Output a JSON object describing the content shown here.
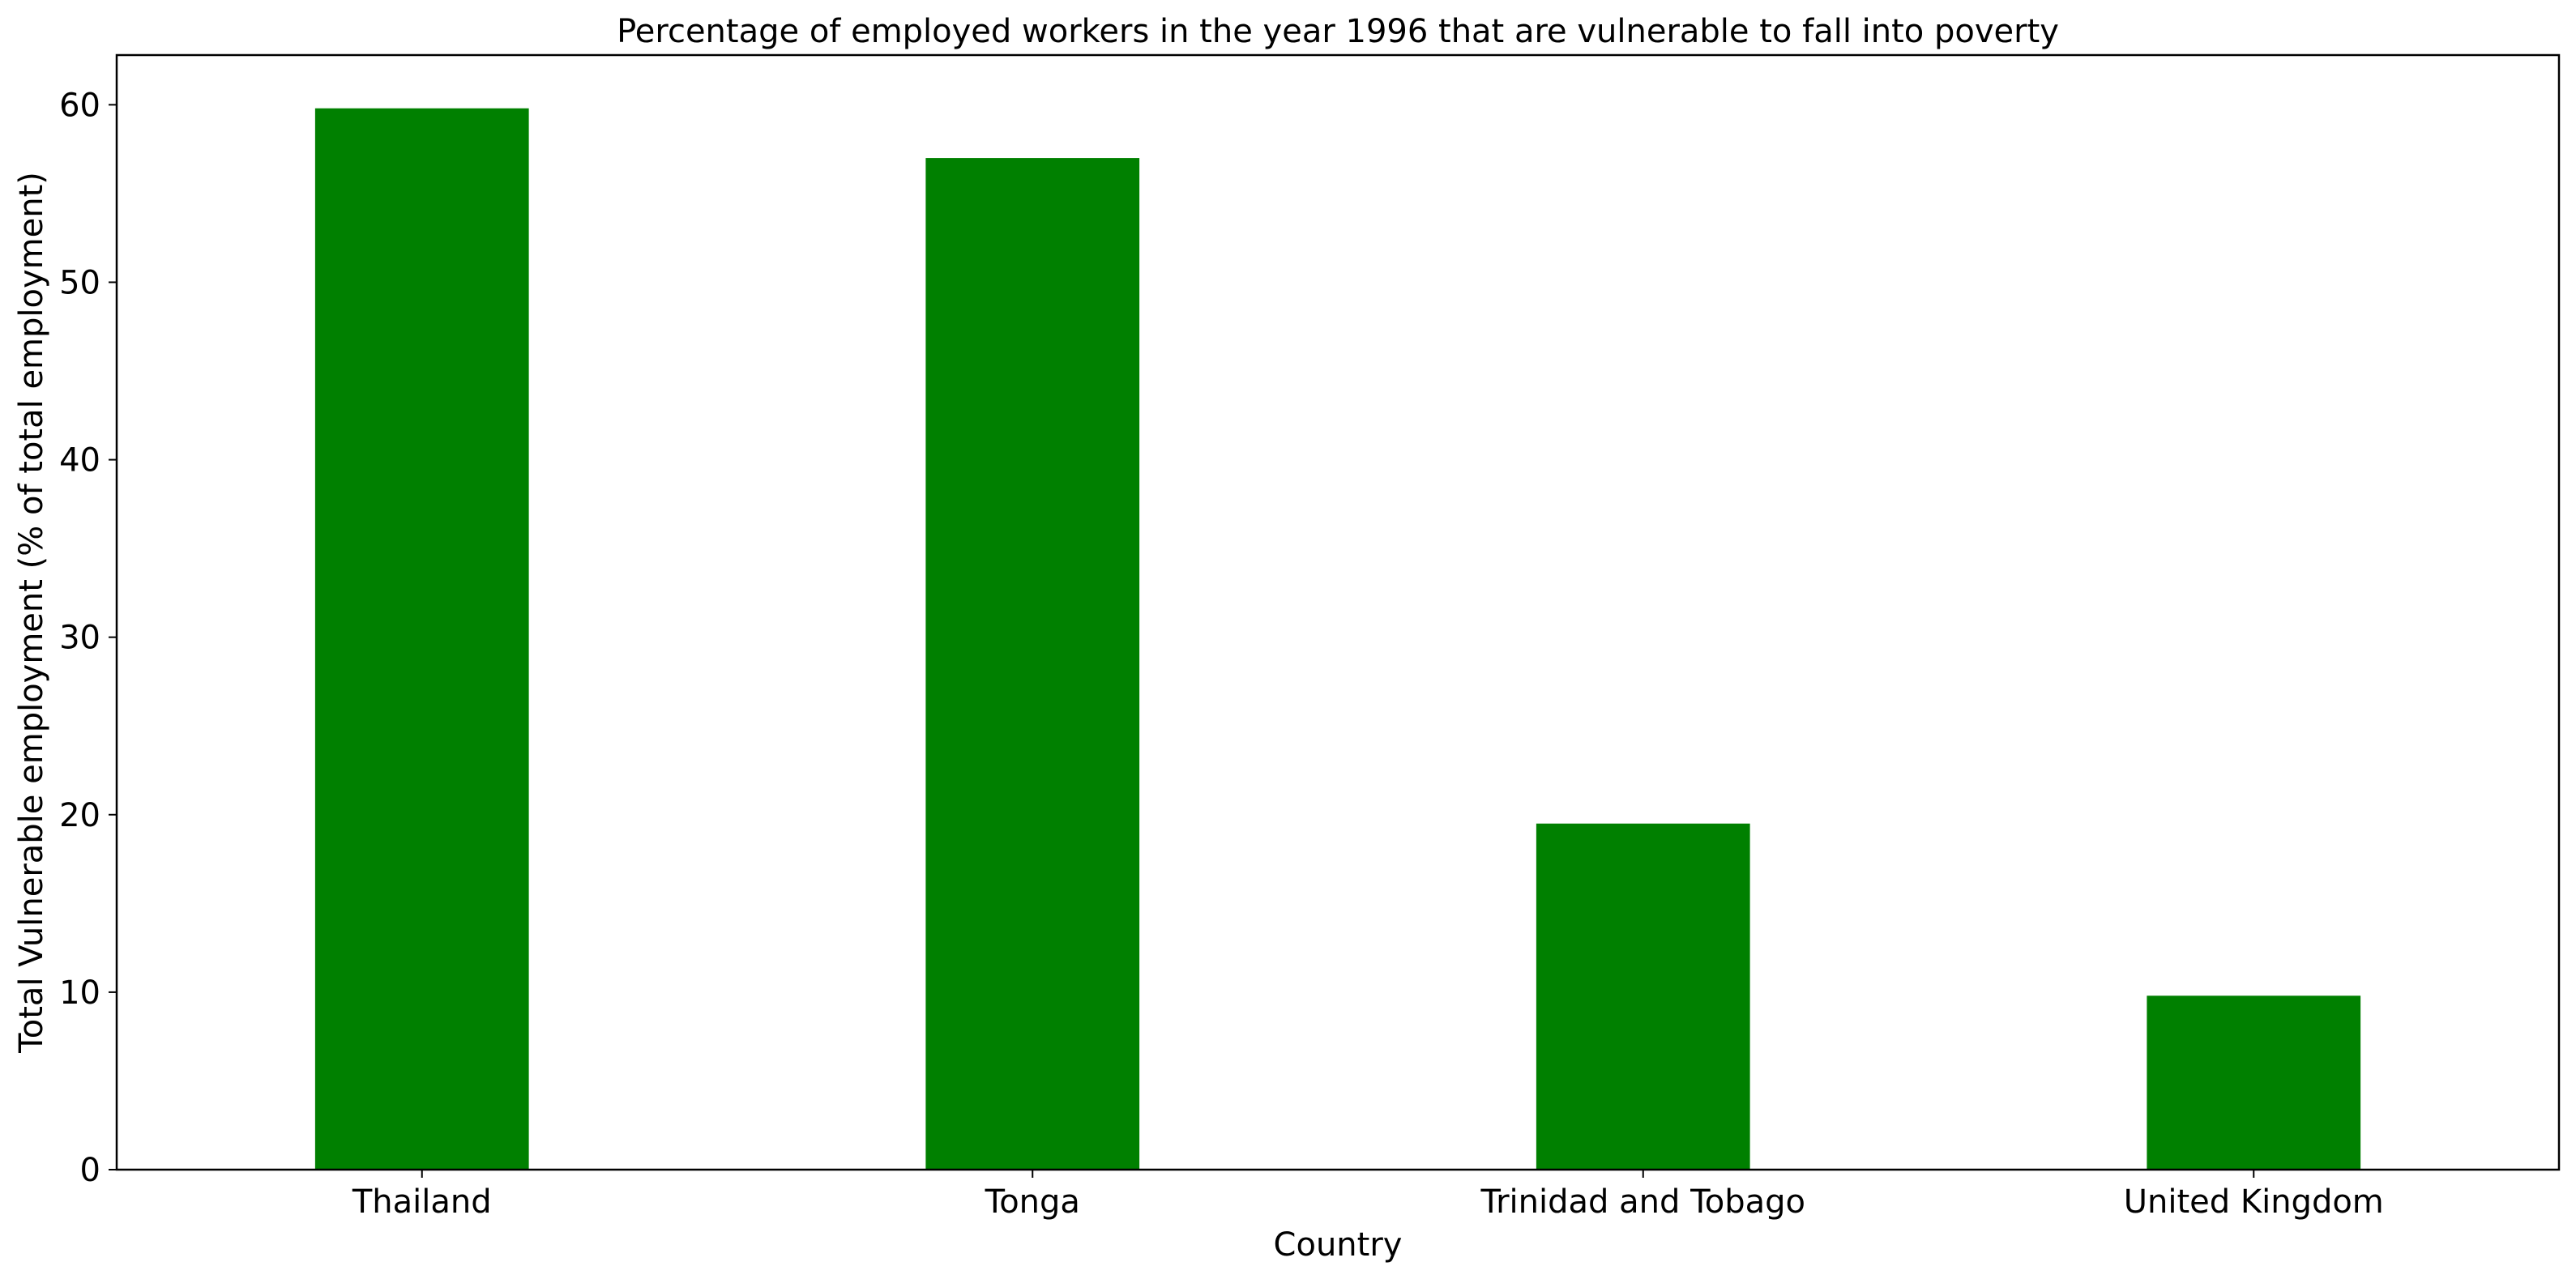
{
  "chart_data": {
    "type": "bar",
    "title": "Percentage of employed workers in the year 1996 that are vulnerable to fall into poverty",
    "xlabel": "Country",
    "ylabel": "Total Vulnerable employment (% of total employment)",
    "categories": [
      "Thailand",
      "Tonga",
      "Trinidad and Tobago",
      "United Kingdom"
    ],
    "values": [
      59.8,
      57.0,
      19.5,
      9.8
    ],
    "ylim": [
      0,
      62.8
    ],
    "yticks": [
      0,
      10,
      20,
      30,
      40,
      50,
      60
    ],
    "grid": false,
    "bar_color": "#008000"
  }
}
